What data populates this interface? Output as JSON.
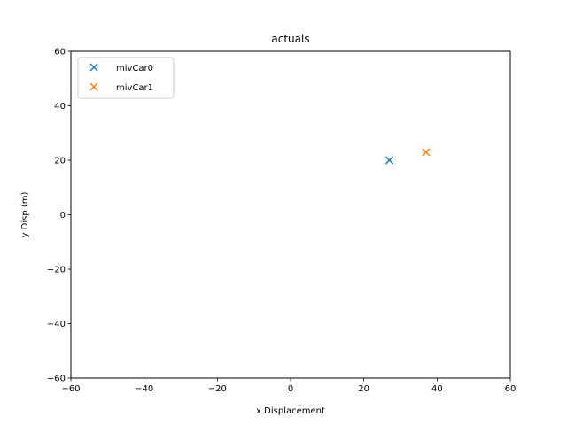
{
  "chart_data": {
    "type": "scatter",
    "title": "actuals",
    "xlabel": "x Displacement",
    "ylabel": "y Disp (m)",
    "xlim": [
      -60,
      60
    ],
    "ylim": [
      -60,
      60
    ],
    "xticks": [
      -60,
      -40,
      -20,
      0,
      20,
      40,
      60
    ],
    "yticks": [
      -60,
      -40,
      -20,
      0,
      20,
      40,
      60
    ],
    "xtick_labels": [
      "−60",
      "−40",
      "−20",
      "0",
      "20",
      "40",
      "60"
    ],
    "ytick_labels": [
      "−60",
      "−40",
      "−20",
      "0",
      "20",
      "40",
      "60"
    ],
    "grid": false,
    "legend_position": "top-left",
    "marker": "x",
    "series": [
      {
        "name": "mivCar0",
        "color": "#1f77b4",
        "points": [
          [
            27,
            20
          ]
        ]
      },
      {
        "name": "mivCar1",
        "color": "#ff7f0e",
        "points": [
          [
            37,
            23
          ]
        ]
      }
    ]
  }
}
